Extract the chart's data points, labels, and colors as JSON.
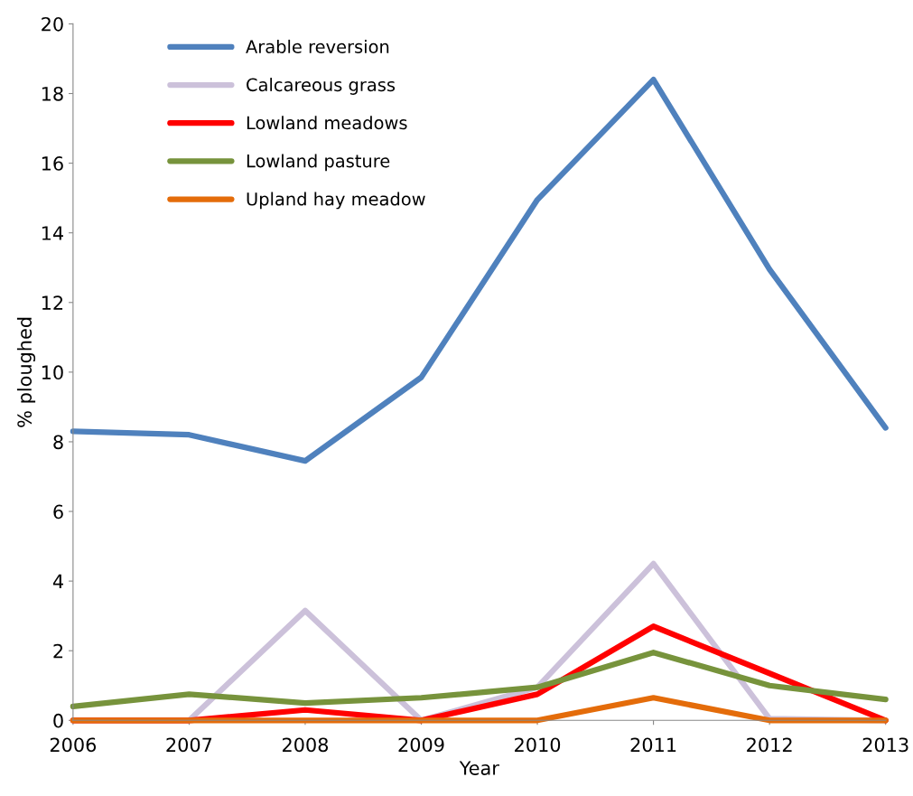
{
  "chart_data": {
    "type": "line",
    "xlabel": "Year",
    "ylabel": "% ploughed",
    "x": [
      2006,
      2007,
      2008,
      2009,
      2010,
      2011,
      2012,
      2013
    ],
    "series": [
      {
        "name": "Arable reversion",
        "color": "#4f81bd",
        "values": [
          8.3,
          8.2,
          7.45,
          9.85,
          14.95,
          18.4,
          12.95,
          8.4
        ]
      },
      {
        "name": "Calcareous grass",
        "color": "#ccc1da",
        "values": [
          0,
          0,
          3.15,
          0,
          0.95,
          4.5,
          0.05,
          0
        ]
      },
      {
        "name": "Lowland meadows",
        "color": "#ff0000",
        "values": [
          0,
          0,
          0.3,
          0,
          0.75,
          2.7,
          1.35,
          0
        ]
      },
      {
        "name": "Lowland pasture",
        "color": "#77933c",
        "values": [
          0.4,
          0.75,
          0.5,
          0.65,
          0.95,
          1.95,
          1.0,
          0.6
        ]
      },
      {
        "name": "Upland hay meadow",
        "color": "#e46c0a",
        "values": [
          0,
          0,
          0,
          0,
          0,
          0.65,
          0,
          0
        ]
      }
    ],
    "xlim": [
      2006,
      2013
    ],
    "xticks": [
      2006,
      2007,
      2008,
      2009,
      2010,
      2011,
      2012,
      2013
    ],
    "ylim": [
      0,
      20
    ],
    "yticks": [
      0,
      2,
      4,
      6,
      8,
      10,
      12,
      14,
      16,
      18,
      20
    ],
    "grid": false,
    "legend": "top left",
    "marker": "none",
    "line_style": "solid"
  }
}
